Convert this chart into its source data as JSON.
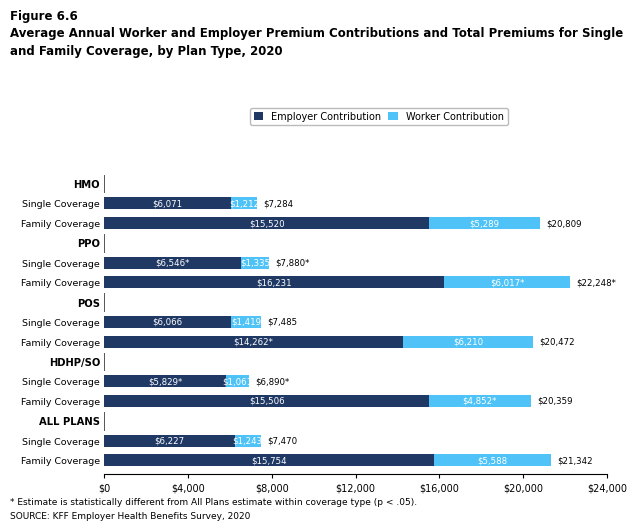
{
  "title_line1": "Figure 6.6",
  "title_line2": "Average Annual Worker and Employer Premium Contributions and Total Premiums for Single",
  "title_line3": "and Family Coverage, by Plan Type, 2020",
  "employer_color": "#1f3864",
  "worker_color": "#4fc3f7",
  "row_labels": [
    "HMO",
    "Single Coverage",
    "Family Coverage",
    "PPO",
    "Single Coverage",
    "Family Coverage",
    "POS",
    "Single Coverage",
    "Family Coverage",
    "HDHP/SO",
    "Single Coverage",
    "Family Coverage",
    "ALL PLANS",
    "Single Coverage",
    "Family Coverage"
  ],
  "employer_values": [
    0,
    6071,
    15520,
    0,
    6546,
    16231,
    0,
    6066,
    14262,
    0,
    5829,
    15506,
    0,
    6227,
    15754
  ],
  "worker_values": [
    0,
    1212,
    5289,
    0,
    1335,
    6017,
    0,
    1419,
    6210,
    0,
    1061,
    4852,
    0,
    1243,
    5588
  ],
  "total_labels": [
    "",
    "$7,284",
    "$20,809",
    "",
    "$7,880*",
    "$22,248*",
    "",
    "$7,485",
    "$20,472",
    "",
    "$6,890*",
    "$20,359",
    "",
    "$7,470",
    "$21,342"
  ],
  "employer_labels": [
    "",
    "$6,071",
    "$15,520",
    "",
    "$6,546*",
    "$16,231",
    "",
    "$6,066",
    "$14,262*",
    "",
    "$5,829*",
    "$15,506",
    "",
    "$6,227",
    "$15,754"
  ],
  "worker_labels": [
    "",
    "$1,212",
    "$5,289",
    "",
    "$1,335",
    "$6,017*",
    "",
    "$1,419",
    "$6,210",
    "",
    "$1,061",
    "$4,852*",
    "",
    "$1,243",
    "$5,588"
  ],
  "is_header": [
    true,
    false,
    false,
    true,
    false,
    false,
    true,
    false,
    false,
    true,
    false,
    false,
    true,
    false,
    false
  ],
  "xlim": [
    0,
    24000
  ],
  "xticks": [
    0,
    4000,
    8000,
    12000,
    16000,
    20000,
    24000
  ],
  "xticklabels": [
    "$0",
    "$4,000",
    "$8,000",
    "$12,000",
    "$16,000",
    "$20,000",
    "$24,000"
  ],
  "footnote1": "* Estimate is statistically different from All Plans estimate within coverage type (p < .05).",
  "footnote2": "SOURCE: KFF Employer Health Benefits Survey, 2020"
}
